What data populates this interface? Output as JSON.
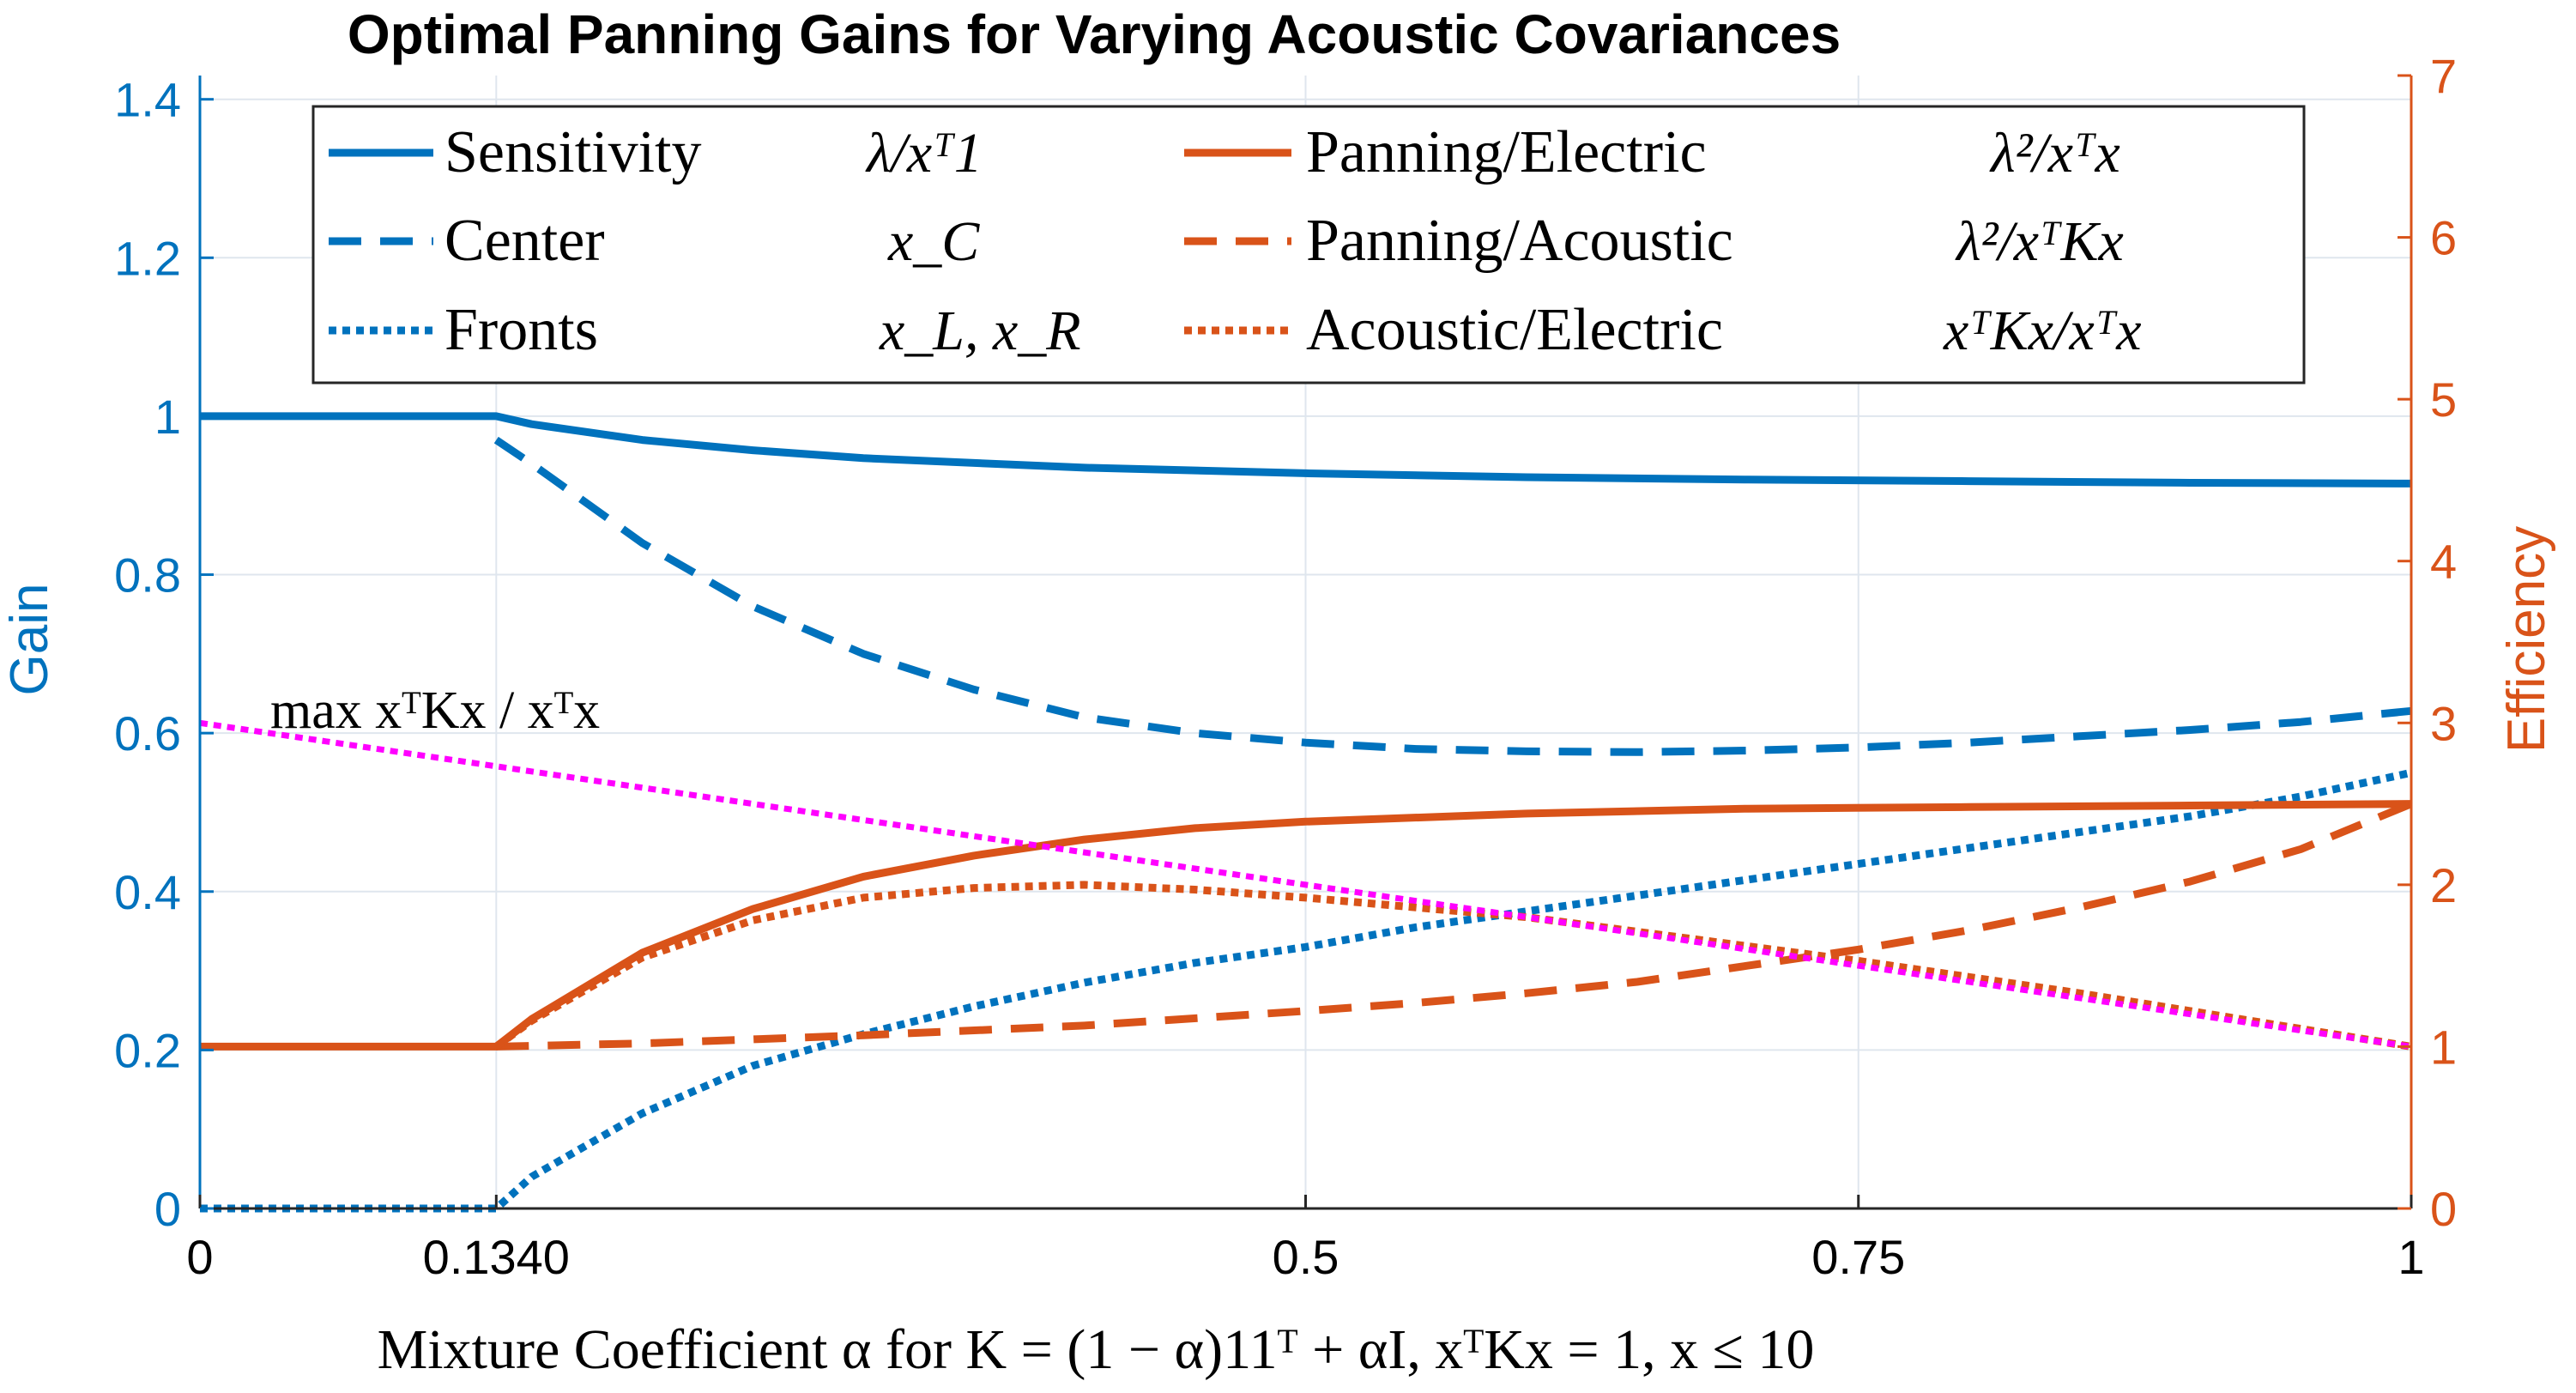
{
  "chart_data": {
    "type": "line",
    "title": "Optimal Panning Gains for Varying Acoustic Covariances",
    "xlabel": "Mixture Coefficient α for K = (1 − α)11ᵀ + αI, xᵀKx = 1, x ≤ 10",
    "ylabel_left": "Gain",
    "ylabel_right": "Efficiency",
    "xlim": [
      0,
      1
    ],
    "ylim_left": [
      0,
      1.43
    ],
    "ylim_right": [
      0,
      7
    ],
    "x_ticks": [
      0,
      0.134,
      0.5,
      0.75,
      1
    ],
    "x_tick_labels": [
      "0",
      "0.1340",
      "0.5",
      "0.75",
      "1"
    ],
    "y_ticks_left": [
      0,
      0.2,
      0.4,
      0.6,
      0.8,
      1,
      1.2,
      1.4
    ],
    "y_tick_labels_left": [
      "0",
      "0.2",
      "0.4",
      "0.6",
      "0.8",
      "1",
      "1.2",
      "1.4"
    ],
    "y_ticks_right": [
      0,
      1,
      2,
      3,
      4,
      5,
      6,
      7
    ],
    "y_tick_labels_right": [
      "0",
      "1",
      "2",
      "3",
      "4",
      "5",
      "6",
      "7"
    ],
    "grid": true,
    "legend_position": "top",
    "colors": {
      "gain": "#0072BD",
      "efficiency": "#D95319",
      "max": "#FF00FF"
    },
    "series": [
      {
        "name": "Sensitivity",
        "formula": "λ/xᵀ1",
        "axis": "left",
        "style": "solid",
        "color": "#0072BD",
        "x": [
          0,
          0.134,
          0.15,
          0.2,
          0.25,
          0.3,
          0.4,
          0.5,
          0.6,
          0.7,
          0.8,
          0.9,
          1.0
        ],
        "values": [
          1.0,
          1.0,
          0.99,
          0.97,
          0.957,
          0.947,
          0.935,
          0.928,
          0.923,
          0.92,
          0.918,
          0.916,
          0.915
        ]
      },
      {
        "name": "Center",
        "formula": "x_C",
        "axis": "left",
        "style": "dashed",
        "color": "#0072BD",
        "x": [
          0.134,
          0.15,
          0.2,
          0.25,
          0.3,
          0.35,
          0.4,
          0.45,
          0.5,
          0.55,
          0.6,
          0.65,
          0.7,
          0.75,
          0.8,
          0.85,
          0.9,
          0.95,
          1.0
        ],
        "values": [
          0.97,
          0.94,
          0.84,
          0.76,
          0.7,
          0.655,
          0.62,
          0.6,
          0.588,
          0.58,
          0.577,
          0.576,
          0.578,
          0.582,
          0.588,
          0.596,
          0.604,
          0.614,
          0.628
        ]
      },
      {
        "name": "Fronts",
        "formula": "x_L, x_R",
        "axis": "left",
        "style": "dotted",
        "color": "#0072BD",
        "x": [
          0,
          0.134,
          0.15,
          0.2,
          0.25,
          0.3,
          0.35,
          0.4,
          0.45,
          0.5,
          0.55,
          0.6,
          0.65,
          0.7,
          0.75,
          0.8,
          0.85,
          0.9,
          0.95,
          1.0
        ],
        "values": [
          0,
          0,
          0.04,
          0.12,
          0.18,
          0.22,
          0.255,
          0.285,
          0.31,
          0.33,
          0.355,
          0.375,
          0.395,
          0.415,
          0.435,
          0.455,
          0.475,
          0.495,
          0.52,
          0.55
        ]
      },
      {
        "name": "Panning/Electric",
        "formula": "λ²/xᵀx",
        "axis": "right",
        "style": "solid",
        "color": "#D95319",
        "x": [
          0,
          0.134,
          0.15,
          0.2,
          0.25,
          0.3,
          0.35,
          0.4,
          0.45,
          0.5,
          0.6,
          0.7,
          0.8,
          0.9,
          1.0
        ],
        "values": [
          1.0,
          1.0,
          1.17,
          1.58,
          1.85,
          2.05,
          2.18,
          2.28,
          2.35,
          2.39,
          2.44,
          2.47,
          2.48,
          2.49,
          2.5
        ]
      },
      {
        "name": "Panning/Acoustic",
        "formula": "λ²/xᵀKx",
        "axis": "right",
        "style": "dashed",
        "color": "#D95319",
        "x": [
          0.134,
          0.2,
          0.3,
          0.4,
          0.5,
          0.55,
          0.6,
          0.65,
          0.7,
          0.75,
          0.8,
          0.85,
          0.9,
          0.95,
          1.0
        ],
        "values": [
          1.0,
          1.02,
          1.07,
          1.13,
          1.22,
          1.27,
          1.33,
          1.4,
          1.5,
          1.6,
          1.72,
          1.86,
          2.02,
          2.22,
          2.5
        ]
      },
      {
        "name": "Acoustic/Electric",
        "formula": "xᵀKx/xᵀx",
        "axis": "right",
        "style": "dotted",
        "color": "#D95319",
        "x": [
          0.134,
          0.15,
          0.2,
          0.25,
          0.3,
          0.35,
          0.4,
          0.45,
          0.5,
          0.55,
          0.6,
          0.65,
          0.7,
          0.75,
          0.8,
          0.85,
          0.9,
          0.95,
          1.0
        ],
        "values": [
          1.0,
          1.16,
          1.55,
          1.78,
          1.92,
          1.98,
          2.0,
          1.97,
          1.92,
          1.86,
          1.8,
          1.71,
          1.62,
          1.53,
          1.43,
          1.33,
          1.22,
          1.11,
          1.0
        ]
      },
      {
        "name": "max xᵀKx/xᵀx",
        "axis": "right",
        "style": "dotted",
        "color": "#FF00FF",
        "x": [
          0,
          1
        ],
        "values": [
          3,
          1
        ]
      }
    ],
    "legend": [
      {
        "name": "Sensitivity",
        "formula": "λ/xᵀ1"
      },
      {
        "name": "Center",
        "formula": "x_C"
      },
      {
        "name": "Fronts",
        "formula": "x_L, x_R"
      },
      {
        "name": "Panning/Electric",
        "formula": "λ²/xᵀx"
      },
      {
        "name": "Panning/Acoustic",
        "formula": "λ²/xᵀKx"
      },
      {
        "name": "Acoustic/Electric",
        "formula": "xᵀKx/xᵀx"
      }
    ],
    "annotation": "max xᵀKx / xᵀx"
  }
}
